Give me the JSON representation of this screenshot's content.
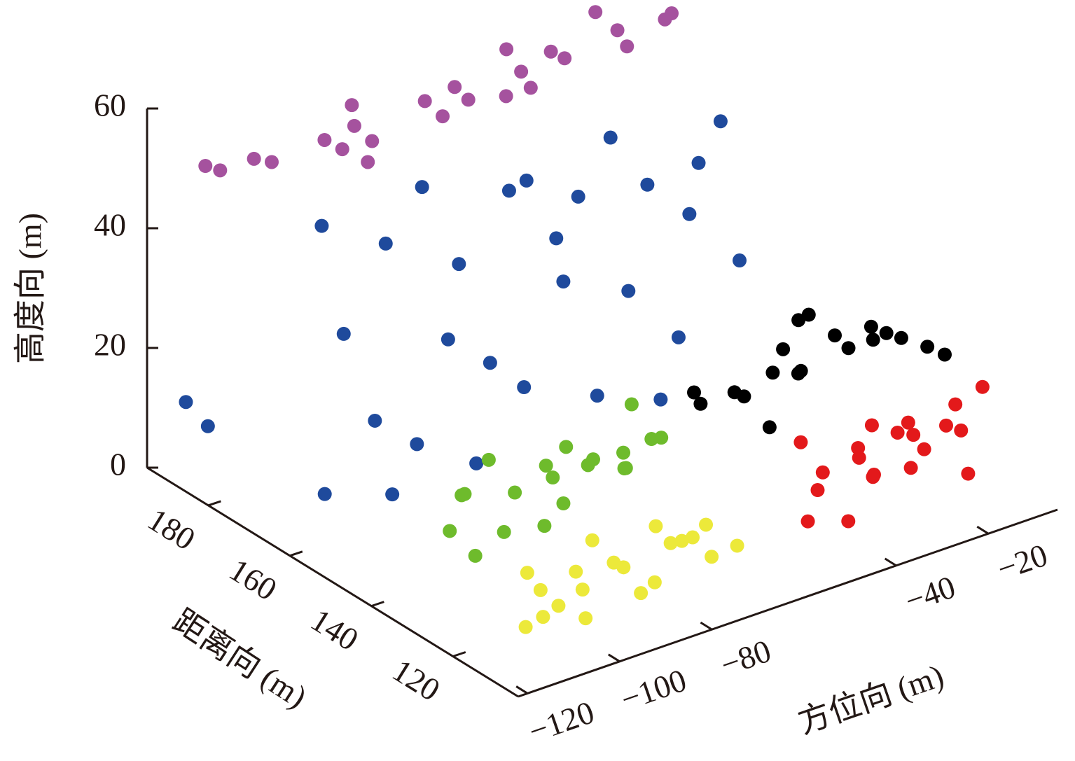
{
  "chart_data": {
    "type": "scatter3d",
    "xlabel": "方位向 (m)",
    "ylabel": "距离向 (m)",
    "zlabel": "高度向 (m)",
    "xlim": [
      -122,
      -5
    ],
    "ylim": [
      104,
      195
    ],
    "zlim": [
      0,
      60
    ],
    "xticks": [
      {
        "value": -120,
        "label": "−120"
      },
      {
        "value": -100,
        "label": "−100"
      },
      {
        "value": -80,
        "label": "−80"
      },
      {
        "value": -40,
        "label": "−40"
      },
      {
        "value": -20,
        "label": "−20"
      }
    ],
    "yticks": [
      120,
      140,
      160,
      180
    ],
    "zticks": [
      0,
      20,
      40,
      60
    ],
    "series": [
      {
        "color": "#1f4a9c",
        "x": [
          -110,
          -105,
          -100,
          -95,
          -90,
          -85,
          -80,
          -75,
          -70,
          -65,
          -60,
          -55,
          -50,
          -45,
          -40,
          -35,
          -30,
          -25,
          -20,
          -108,
          -98,
          -88,
          -78,
          -68,
          -58,
          -48,
          -38,
          -28,
          -115,
          -118
        ],
        "y": [
          165,
          166,
          164,
          167,
          165,
          163,
          166,
          164,
          165,
          167,
          163,
          165,
          166,
          164,
          165,
          163,
          166,
          164,
          165,
          168,
          162,
          166,
          164,
          163,
          167,
          165,
          164,
          166,
          188,
          190
        ],
        "z": [
          5,
          30,
          15,
          42,
          8,
          25,
          35,
          18,
          45,
          10,
          28,
          40,
          5,
          22,
          38,
          12,
          30,
          45,
          20,
          48,
          3,
          50,
          2,
          47,
          33,
          48,
          2,
          38,
          8,
          12
        ]
      },
      {
        "color": "#a5529e",
        "x": [
          -115,
          -110,
          -105,
          -100,
          -95,
          -90,
          -85,
          -80,
          -75,
          -70,
          -65,
          -60,
          -55,
          -50,
          -45,
          -40,
          -35,
          -30,
          -25,
          -112,
          -98,
          -82,
          -68,
          -52,
          -38
        ],
        "y": [
          185,
          178,
          188,
          172,
          182,
          176,
          186,
          170,
          180,
          175,
          184,
          171,
          179,
          174,
          183,
          170,
          178,
          172,
          176,
          192,
          168,
          190,
          168,
          186,
          180
        ],
        "z": [
          52,
          55,
          50,
          57,
          53,
          54,
          51,
          58,
          55,
          56,
          53,
          57,
          55,
          58,
          54,
          59,
          57,
          60,
          58,
          49,
          56,
          52,
          59,
          55,
          60
        ]
      },
      {
        "color": "#6ebb2c",
        "x": [
          -105,
          -100,
          -95,
          -90,
          -85,
          -80,
          -75,
          -70,
          -65,
          -60,
          -103,
          -93,
          -83,
          -73,
          -63,
          -98,
          -88,
          -78,
          -68,
          -62
        ],
        "y": [
          140,
          142,
          138,
          141,
          139,
          143,
          140,
          137,
          142,
          139,
          136,
          144,
          137,
          141,
          138,
          145,
          136,
          142,
          139,
          144
        ],
        "z": [
          8,
          12,
          6,
          10,
          14,
          9,
          11,
          13,
          7,
          12,
          5,
          15,
          8,
          11,
          13,
          10,
          6,
          14,
          9,
          16
        ]
      },
      {
        "color": "#ece93a",
        "x": [
          -108,
          -103,
          -98,
          -93,
          -88,
          -83,
          -78,
          -73,
          -68,
          -63,
          -105,
          -95,
          -85,
          -75,
          -65,
          -100,
          -90,
          -80,
          -70,
          -106
        ],
        "y": [
          118,
          120,
          117,
          121,
          119,
          118,
          120,
          122,
          119,
          117,
          121,
          118,
          120,
          117,
          121,
          119,
          122,
          118,
          120,
          116
        ],
        "z": [
          2,
          6,
          9,
          3,
          7,
          1,
          10,
          5,
          8,
          4,
          9,
          0,
          5,
          8,
          1,
          3,
          10,
          2,
          6,
          4
        ]
      },
      {
        "color": "#e3191b",
        "x": [
          -45,
          -40,
          -35,
          -30,
          -25,
          -20,
          -15,
          -10,
          -8,
          -43,
          -38,
          -33,
          -28,
          -23,
          -18,
          -13,
          -42,
          -32,
          -22,
          -12
        ],
        "y": [
          120,
          122,
          119,
          121,
          118,
          123,
          120,
          122,
          119,
          124,
          118,
          121,
          123,
          119,
          122,
          120,
          121,
          119,
          124,
          118
        ],
        "z": [
          2,
          8,
          12,
          5,
          14,
          3,
          10,
          7,
          15,
          13,
          1,
          9,
          4,
          11,
          6,
          13,
          6,
          15,
          9,
          2
        ]
      },
      {
        "color": "#000000",
        "x": [
          -55,
          -50,
          -45,
          -40,
          -35,
          -30,
          -25,
          -20,
          -15,
          -10,
          -52,
          -42,
          -32,
          -22,
          -12,
          -48,
          -38,
          -28,
          -18
        ],
        "y": [
          135,
          130,
          138,
          128,
          133,
          127,
          136,
          129,
          131,
          126,
          140,
          132,
          137,
          130,
          128,
          126,
          134,
          139,
          135
        ],
        "z": [
          18,
          20,
          16,
          22,
          19,
          24,
          21,
          23,
          20,
          18,
          17,
          21,
          25,
          22,
          19,
          16,
          23,
          24,
          21
        ]
      }
    ]
  }
}
